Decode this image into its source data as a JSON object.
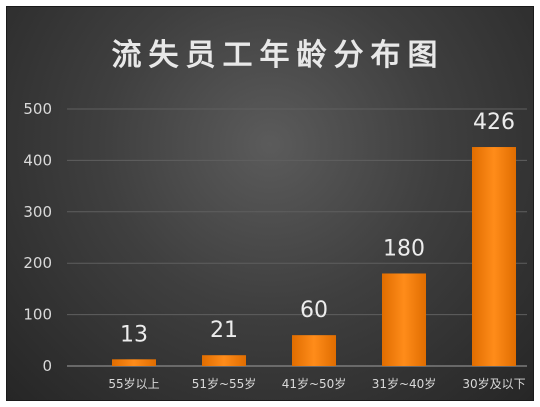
{
  "chart_data": {
    "type": "bar",
    "title": "流失员工年龄分布图",
    "xlabel": "",
    "ylabel": "",
    "categories": [
      "55岁以上",
      "51岁~55岁",
      "41岁~50岁",
      "31岁~40岁",
      "30岁及以下"
    ],
    "values": [
      13,
      21,
      60,
      180,
      426
    ],
    "data_labels": [
      "13",
      "21",
      "60",
      "180",
      "426"
    ],
    "yticks": [
      "0",
      "100",
      "200",
      "300",
      "400",
      "500"
    ],
    "ylim": [
      0,
      500
    ],
    "grid": true,
    "legend": "none",
    "colors": {
      "bar": "#f07800",
      "bar_light": "#ff9a2e",
      "background": "#3a3a3a",
      "grid": "#5f5f5f",
      "text": "#d9d9d9"
    }
  }
}
